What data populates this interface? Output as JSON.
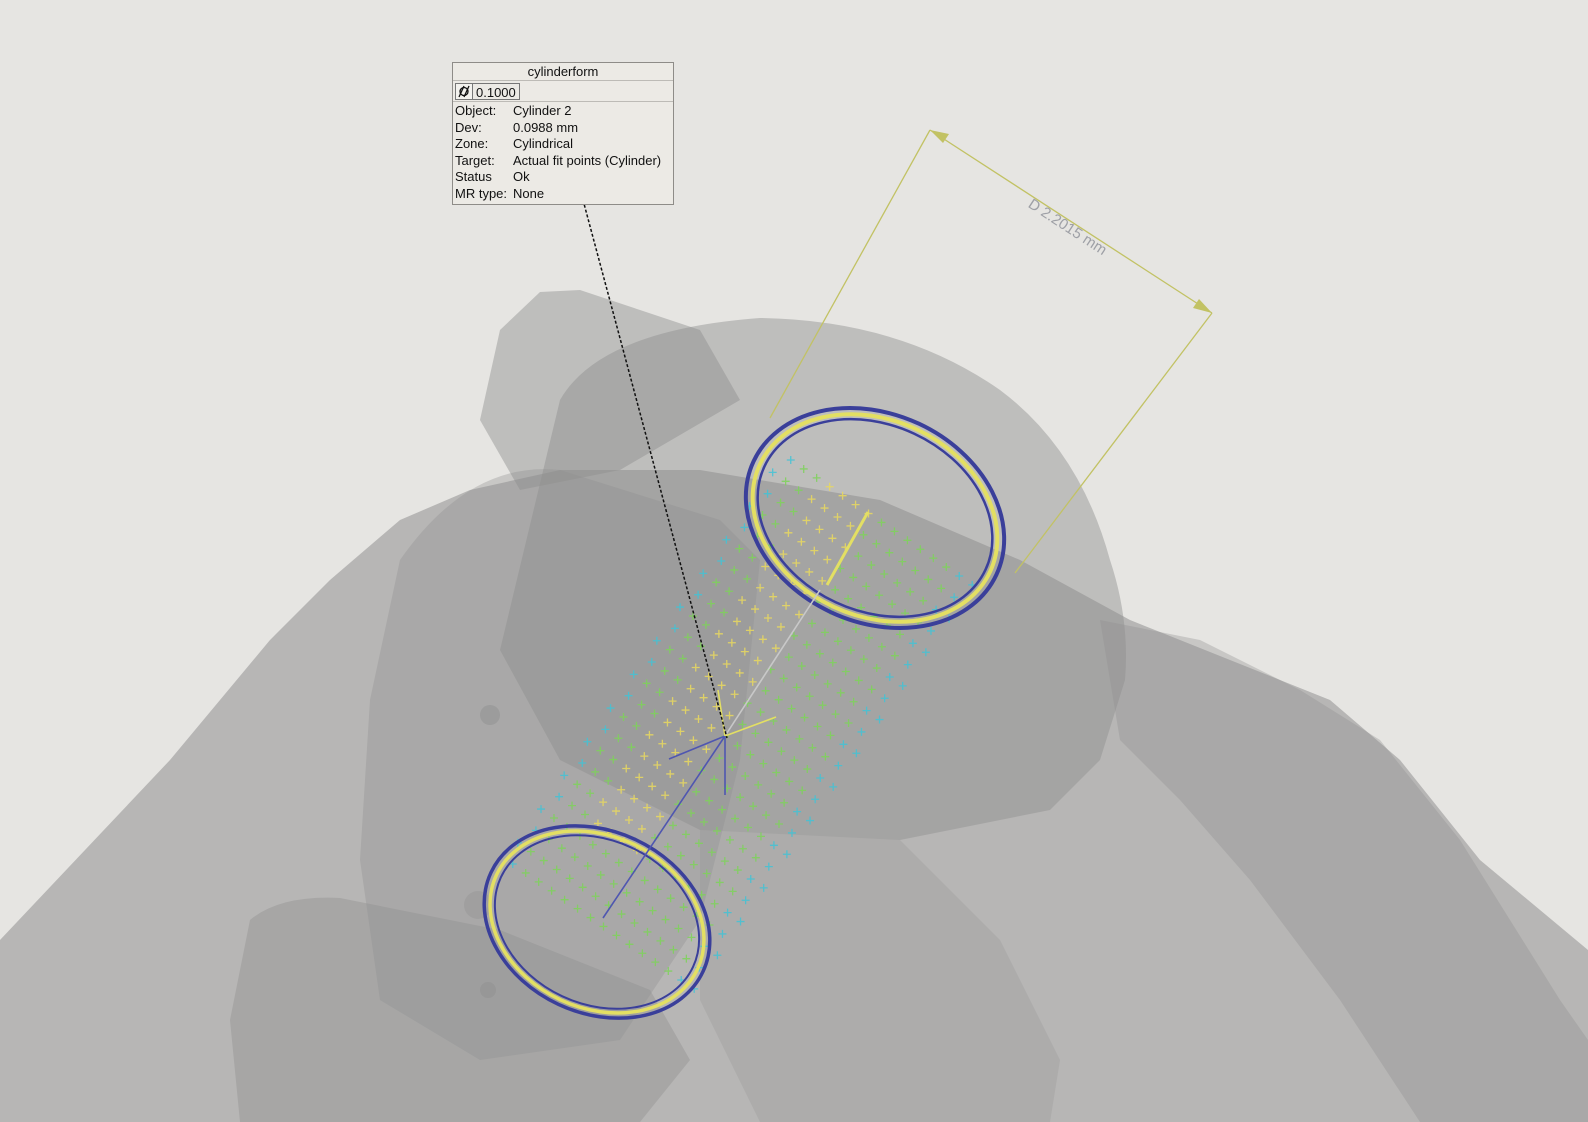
{
  "callout": {
    "title": "cylinderform",
    "tolerance_symbol": "cylindricity-icon",
    "tolerance_value": "0.1000",
    "rows": [
      {
        "key": "Object:",
        "value": "Cylinder 2"
      },
      {
        "key": "Dev:",
        "value": "0.0988 mm"
      },
      {
        "key": "Zone:",
        "value": "Cylindrical"
      },
      {
        "key": "Target:",
        "value": "Actual fit points (Cylinder)"
      },
      {
        "key": "Status",
        "value": "Ok"
      },
      {
        "key": "MR type:",
        "value": "None"
      }
    ]
  },
  "dimension": {
    "label": "D 2.2015 mm",
    "color": "#c2c264"
  },
  "colors": {
    "background": "#e6e5e2",
    "part": "#8d8d8d",
    "ring_inner": "#e3df63",
    "ring_outer": "#3a3f9a",
    "points_green": "#7ed35a",
    "points_yellow": "#eada5e",
    "points_cyan": "#42c3d6"
  }
}
